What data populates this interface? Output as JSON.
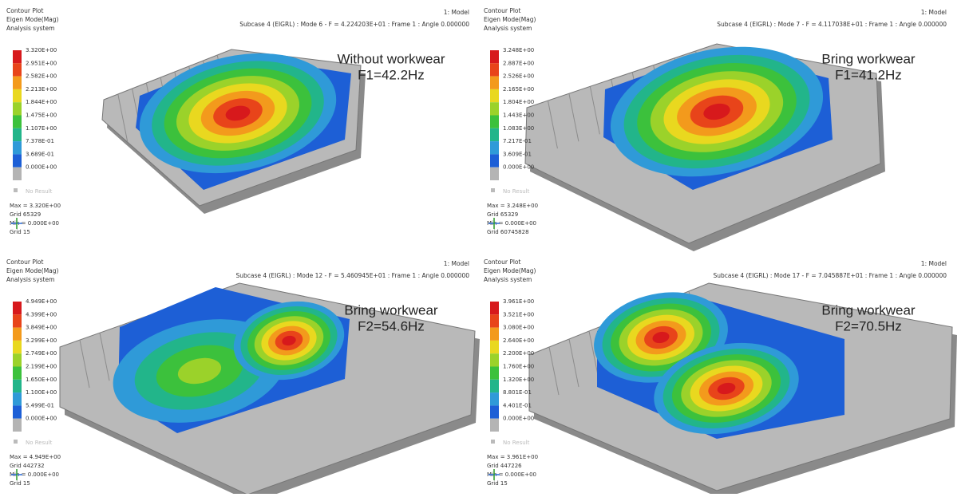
{
  "panels": [
    {
      "header_left": [
        "Contour Plot",
        "Eigen Mode(Mag)",
        "Analysis system"
      ],
      "model": "1: Model",
      "subcase": "Subcase 4 (EIGRL) : Mode 6 - F = 4.224203E+01 : Frame 1 : Angle 0.000000",
      "legend": [
        "3.320E+00",
        "2.951E+00",
        "2.582E+00",
        "2.213E+00",
        "1.844E+00",
        "1.475E+00",
        "1.107E+00",
        "7.378E-01",
        "3.689E-01",
        "0.000E+00"
      ],
      "no_result": "No Result",
      "footer": [
        "Max = 3.320E+00",
        "Grid 65329",
        "Min = 0.000E+00",
        "Grid 15"
      ],
      "annotation": [
        "Without workwear",
        "F1=42.2Hz"
      ]
    },
    {
      "header_left": [
        "Contour Plot",
        "Eigen Mode(Mag)",
        "Analysis system"
      ],
      "model": "1: Model",
      "subcase": "Subcase 4 (EIGRL) : Mode 7 - F = 4.117038E+01 : Frame 1 : Angle 0.000000",
      "legend": [
        "3.248E+00",
        "2.887E+00",
        "2.526E+00",
        "2.165E+00",
        "1.804E+00",
        "1.443E+00",
        "1.083E+00",
        "7.217E-01",
        "3.609E-01",
        "0.000E+00"
      ],
      "no_result": "No Result",
      "footer": [
        "Max = 3.248E+00",
        "Grid 65329",
        "Min = 0.000E+00",
        "Grid 60745828"
      ],
      "annotation": [
        "Bring workwear",
        "F1=41.2Hz"
      ]
    },
    {
      "header_left": [
        "Contour Plot",
        "Eigen Mode(Mag)",
        "Analysis system"
      ],
      "model": "1: Model",
      "subcase": "Subcase 4 (EIGRL) : Mode 12 - F = 5.460945E+01 : Frame 1 : Angle 0.000000",
      "legend": [
        "4.949E+00",
        "4.399E+00",
        "3.849E+00",
        "3.299E+00",
        "2.749E+00",
        "2.199E+00",
        "1.650E+00",
        "1.100E+00",
        "5.499E-01",
        "0.000E+00"
      ],
      "no_result": "No Result",
      "footer": [
        "Max = 4.949E+00",
        "Grid 442732",
        "Min = 0.000E+00",
        "Grid 15"
      ],
      "annotation": [
        "Bring workwear",
        "F2=54.6Hz"
      ]
    },
    {
      "header_left": [
        "Contour Plot",
        "Eigen Mode(Mag)",
        "Analysis system"
      ],
      "model": "1: Model",
      "subcase": "Subcase 4 (EIGRL) : Mode 17 - F = 7.045887E+01 : Frame 1 : Angle 0.000000",
      "legend": [
        "3.961E+00",
        "3.521E+00",
        "3.080E+00",
        "2.640E+00",
        "2.200E+00",
        "1.760E+00",
        "1.320E+00",
        "8.801E-01",
        "4.401E-01",
        "0.000E+00"
      ],
      "no_result": "No Result",
      "footer": [
        "Max = 3.961E+00",
        "Grid 447226",
        "Min = 0.000E+00",
        "Grid 15"
      ],
      "annotation": [
        "Bring workwear",
        "F2=70.5Hz"
      ]
    }
  ]
}
